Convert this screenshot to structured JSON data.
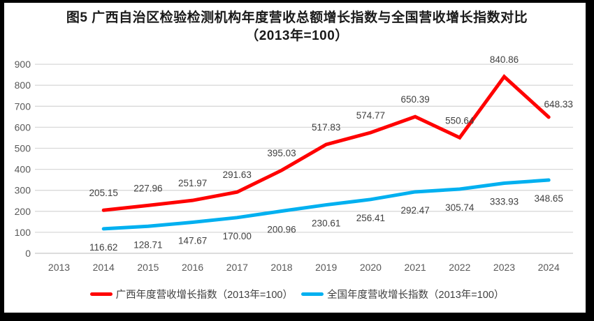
{
  "figure": {
    "background": "#ffffff",
    "frame_border_color": "#000000"
  },
  "chart_data": {
    "type": "line",
    "title": "图5 广西自治区检验检测机构年度营收总额增长指数与全国营收增长指数对比（2013年=100）",
    "categories": [
      "2013",
      "2014",
      "2015",
      "2016",
      "2017",
      "2018",
      "2019",
      "2020",
      "2021",
      "2022",
      "2023",
      "2024"
    ],
    "y_ticks": [
      0,
      100,
      200,
      300,
      400,
      500,
      600,
      700,
      800,
      900
    ],
    "ylim": [
      0,
      900
    ],
    "grid": "horizontal",
    "grid_color": "#d9d9d9",
    "axis_line_color": "#c6c6c6",
    "axis_label_color": "#595959",
    "data_label_color": "#404040",
    "legend_position": "bottom",
    "series": [
      {
        "key": "guangxi",
        "name": "广西年度营收增长指数（2013年=100）",
        "color": "#ff0000",
        "start_category": "2014",
        "label_position": "above",
        "values": [
          205.15,
          227.96,
          251.97,
          291.63,
          395.03,
          517.83,
          574.77,
          650.39,
          550.64,
          840.86,
          648.33
        ],
        "labels": [
          "205.15",
          "227.96",
          "251.97",
          "291.63",
          "395.03",
          "517.83",
          "574.77",
          "650.39",
          "550.64",
          "840.86",
          "648.33"
        ]
      },
      {
        "key": "national",
        "name": "全国年度营收增长指数（2013年=100）",
        "color": "#00b0f0",
        "start_category": "2014",
        "label_position": "below",
        "values": [
          116.62,
          128.71,
          147.67,
          170.0,
          200.96,
          230.61,
          256.41,
          292.47,
          305.74,
          333.93,
          348.65
        ],
        "labels": [
          "116.62",
          "128.71",
          "147.67",
          "170.00",
          "200.96",
          "230.61",
          "256.41",
          "292.47",
          "305.74",
          "333.93",
          "348.65"
        ]
      }
    ]
  }
}
